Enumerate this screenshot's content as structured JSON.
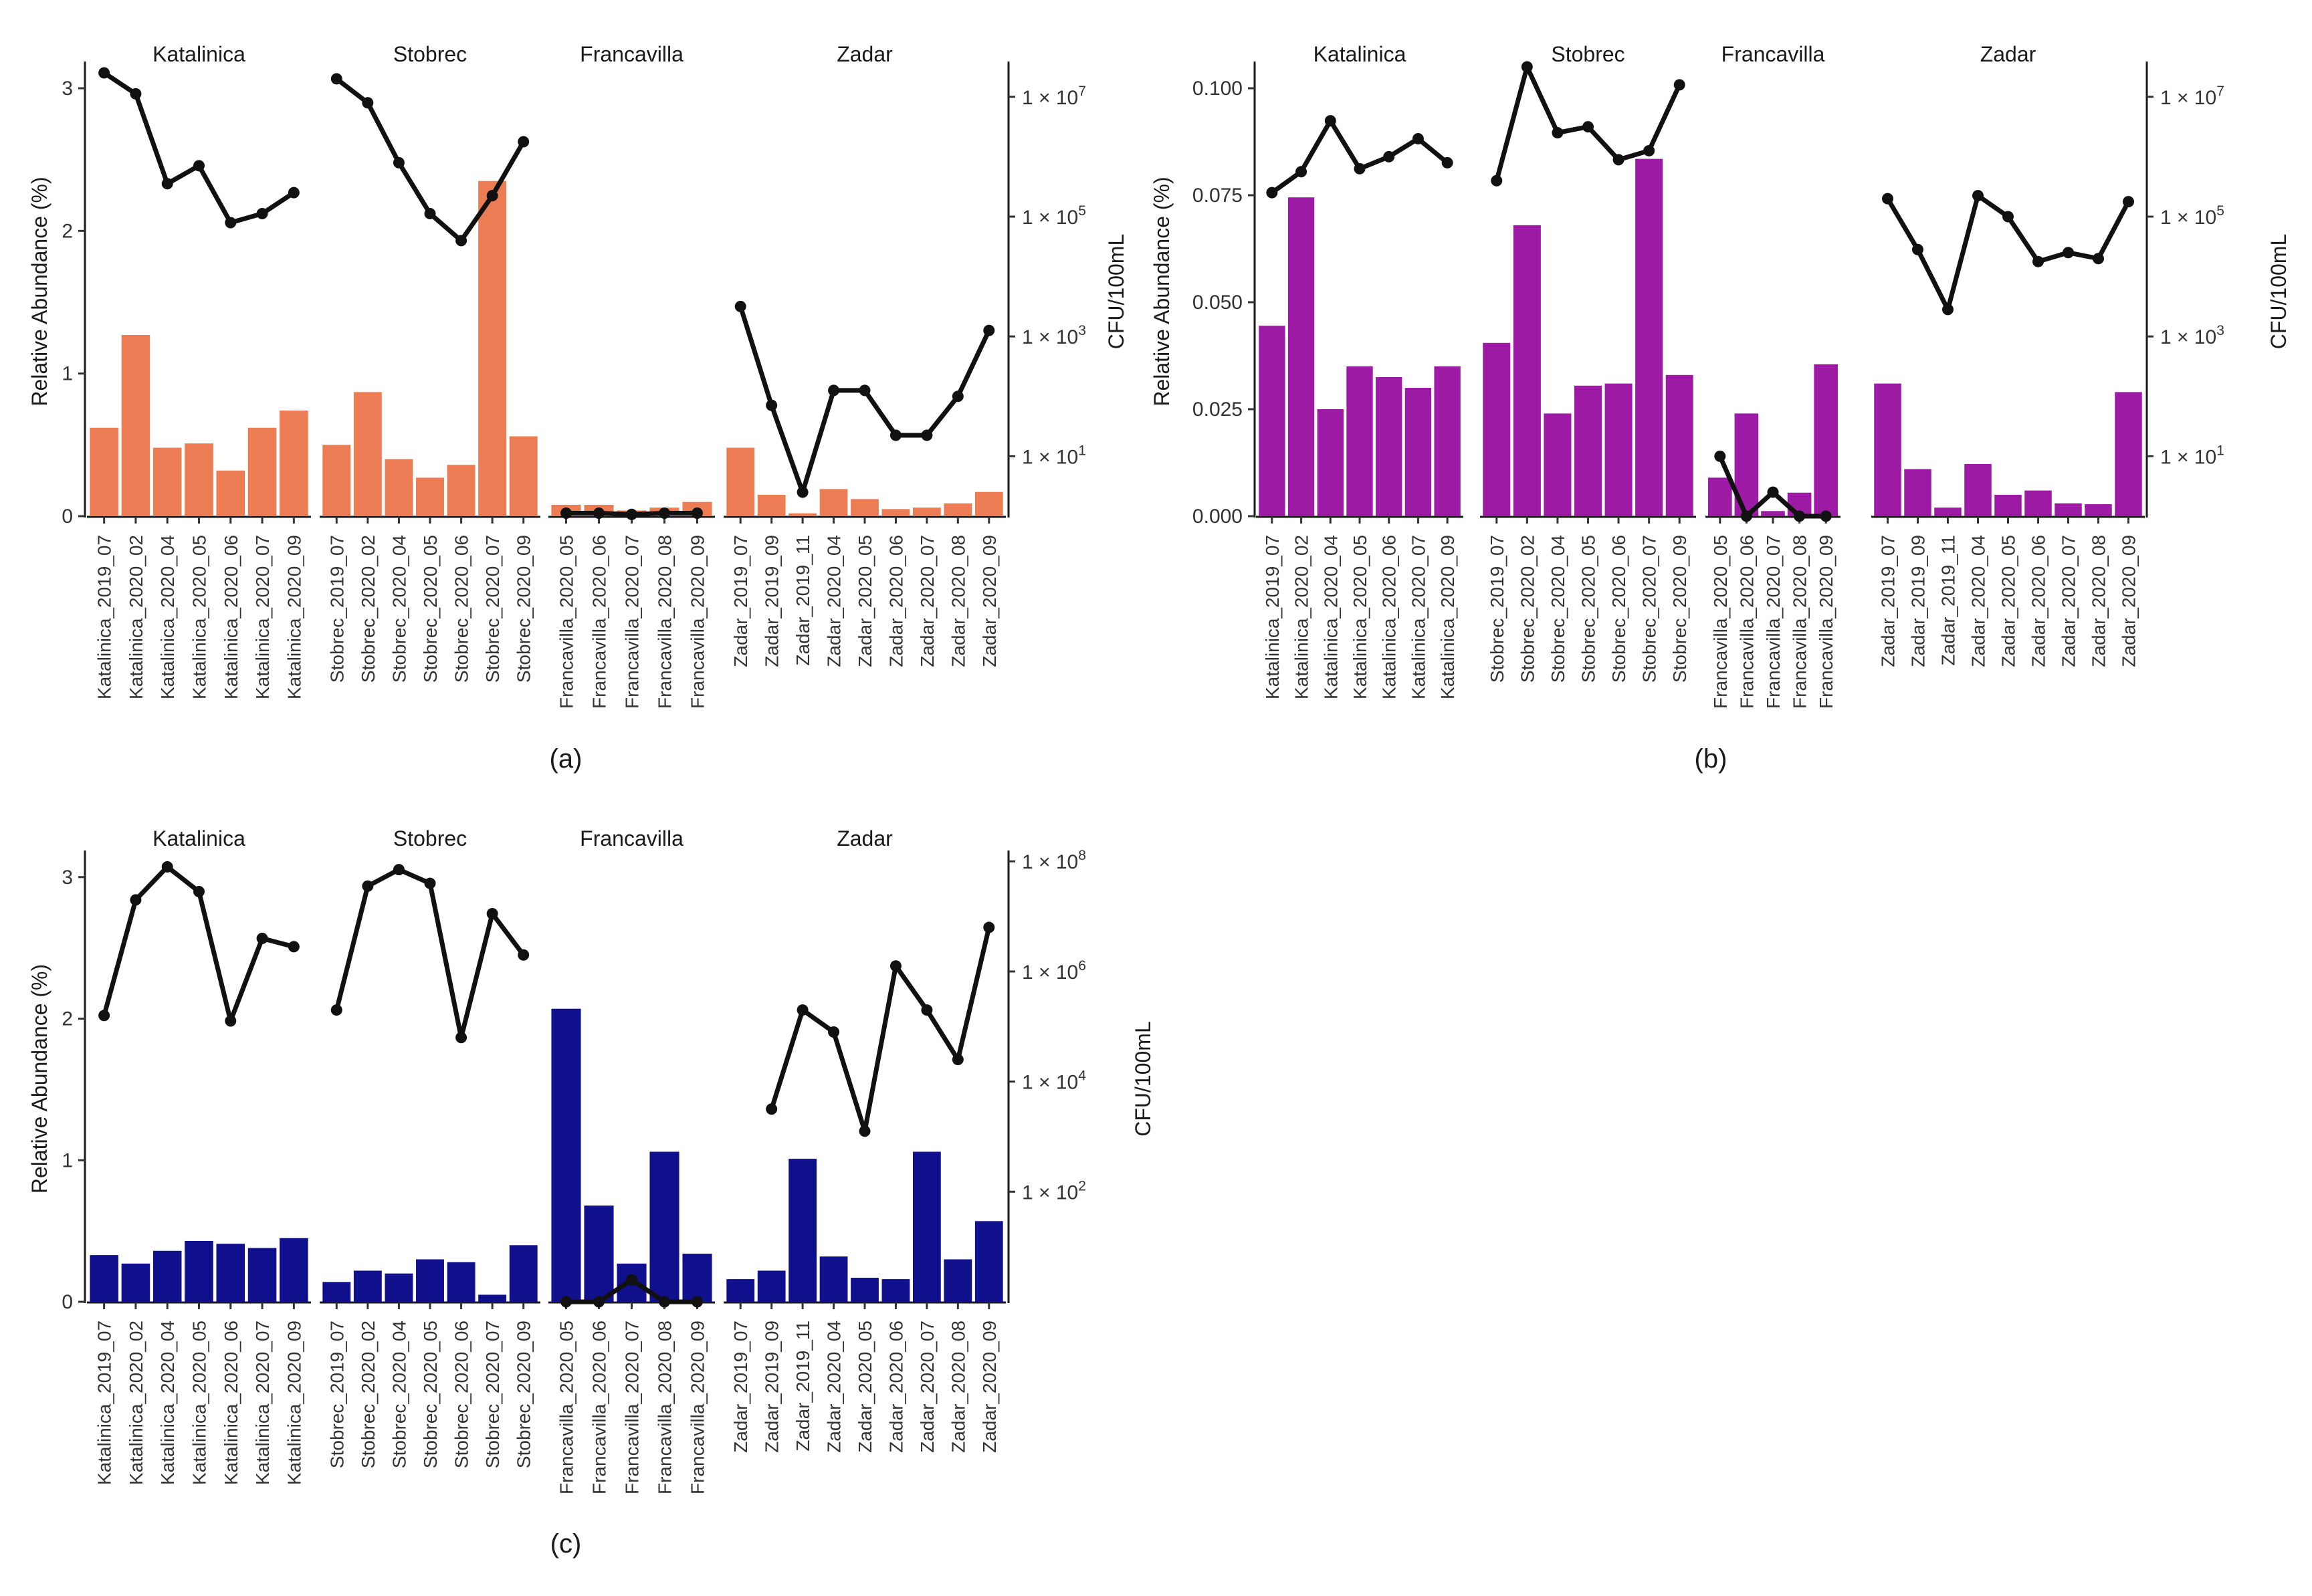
{
  "chart_data": [
    {
      "panel_label": "(a)",
      "type": "bar",
      "secondary_type": "line",
      "ylabel": "Relative Abundance (%)",
      "y2label": "CFU/100mL",
      "ylim": [
        0,
        3.15
      ],
      "yticks": [
        0,
        1,
        2,
        3
      ],
      "y_tick_labels": [
        "0",
        "1",
        "2",
        "3"
      ],
      "y2_log_range": [
        0,
        7.5
      ],
      "y2_ticks": [
        {
          "exp": 1,
          "base": "1 × 10",
          "sup": "1"
        },
        {
          "exp": 3,
          "base": "1 × 10",
          "sup": "3"
        },
        {
          "exp": 5,
          "base": "1 × 10",
          "sup": "5"
        },
        {
          "exp": 7,
          "base": "1 × 10",
          "sup": "7"
        }
      ],
      "bar_color": "#ec7c54",
      "facets": [
        {
          "name": "Katalinica",
          "categories": [
            "Katalinica_2019_07",
            "Katalinica_2020_02",
            "Katalinica_2020_04",
            "Katalinica_2020_05",
            "Katalinica_2020_06",
            "Katalinica_2020_07",
            "Katalinica_2020_09"
          ],
          "values": [
            0.62,
            1.27,
            0.48,
            0.51,
            0.32,
            0.62,
            0.74
          ],
          "cfu_log10": [
            7.4,
            7.05,
            5.55,
            5.85,
            4.9,
            5.05,
            5.4
          ]
        },
        {
          "name": "Stobrec",
          "categories": [
            "Stobrec_2019_07",
            "Stobrec_2020_02",
            "Stobrec_2020_04",
            "Stobrec_2020_05",
            "Stobrec_2020_06",
            "Stobrec_2020_07",
            "Stobrec_2020_09"
          ],
          "values": [
            0.5,
            0.87,
            0.4,
            0.27,
            0.36,
            2.35,
            0.56
          ],
          "cfu_log10": [
            7.3,
            6.9,
            5.9,
            5.05,
            4.6,
            5.35,
            6.25
          ]
        },
        {
          "name": "Francavilla",
          "categories": [
            "Francavilla_2020_05",
            "Francavilla_2020_06",
            "Francavilla_2020_07",
            "Francavilla_2020_08",
            "Francavilla_2020_09"
          ],
          "values": [
            0.08,
            0.08,
            0.04,
            0.06,
            0.1
          ],
          "cfu_log10": [
            0.05,
            0.05,
            0.03,
            0.05,
            0.05
          ]
        },
        {
          "name": "Zadar",
          "categories": [
            "Zadar_2019_07",
            "Zadar_2019_09",
            "Zadar_2019_11",
            "Zadar_2020_04",
            "Zadar_2020_05",
            "Zadar_2020_06",
            "Zadar_2020_07",
            "Zadar_2020_08",
            "Zadar_2020_09"
          ],
          "values": [
            0.48,
            0.15,
            0.02,
            0.19,
            0.12,
            0.05,
            0.06,
            0.09,
            0.17
          ],
          "cfu_log10": [
            3.5,
            1.85,
            0.4,
            2.1,
            2.1,
            1.35,
            1.35,
            2.0,
            3.1
          ]
        }
      ]
    },
    {
      "panel_label": "(b)",
      "type": "bar",
      "secondary_type": "line",
      "ylabel": "Relative Abundance (%)",
      "y2label": "CFU/100mL",
      "ylim": [
        0,
        0.105
      ],
      "yticks": [
        0,
        0.025,
        0.05,
        0.075,
        0.1
      ],
      "y_tick_labels": [
        "0.000",
        "0.025",
        "0.050",
        "0.075",
        "0.100"
      ],
      "y2_log_range": [
        0,
        7.5
      ],
      "y2_ticks": [
        {
          "exp": 1,
          "base": "1 × 10",
          "sup": "1"
        },
        {
          "exp": 3,
          "base": "1 × 10",
          "sup": "3"
        },
        {
          "exp": 5,
          "base": "1 × 10",
          "sup": "5"
        },
        {
          "exp": 7,
          "base": "1 × 10",
          "sup": "7"
        }
      ],
      "bar_color": "#9c1aa4",
      "facets": [
        {
          "name": "Katalinica",
          "categories": [
            "Katalinica_2019_07",
            "Katalinica_2020_02",
            "Katalinica_2020_04",
            "Katalinica_2020_05",
            "Katalinica_2020_06",
            "Katalinica_2020_07",
            "Katalinica_2020_09"
          ],
          "values": [
            0.0445,
            0.0745,
            0.025,
            0.035,
            0.0325,
            0.03,
            0.035
          ],
          "cfu_log10": [
            5.4,
            5.75,
            6.6,
            5.8,
            6.0,
            6.3,
            5.9
          ]
        },
        {
          "name": "Stobrec",
          "categories": [
            "Stobrec_2019_07",
            "Stobrec_2020_02",
            "Stobrec_2020_04",
            "Stobrec_2020_05",
            "Stobrec_2020_06",
            "Stobrec_2020_07",
            "Stobrec_2020_09"
          ],
          "values": [
            0.0405,
            0.068,
            0.024,
            0.0305,
            0.031,
            0.0835,
            0.033
          ],
          "cfu_log10": [
            5.6,
            7.5,
            6.4,
            6.5,
            5.95,
            6.1,
            7.2
          ]
        },
        {
          "name": "Francavilla",
          "categories": [
            "Francavilla_2020_05",
            "Francavilla_2020_06",
            "Francavilla_2020_07",
            "Francavilla_2020_08",
            "Francavilla_2020_09"
          ],
          "values": [
            0.009,
            0.024,
            0.0012,
            0.0055,
            0.0355
          ],
          "cfu_log10": [
            1.0,
            0.0,
            0.4,
            0.0,
            0.0
          ]
        },
        {
          "name": "Zadar",
          "categories": [
            "Zadar_2019_07",
            "Zadar_2019_09",
            "Zadar_2019_11",
            "Zadar_2020_04",
            "Zadar_2020_05",
            "Zadar_2020_06",
            "Zadar_2020_07",
            "Zadar_2020_08",
            "Zadar_2020_09"
          ],
          "values": [
            0.031,
            0.011,
            0.002,
            0.0122,
            0.005,
            0.006,
            0.003,
            0.0028,
            0.029
          ],
          "cfu_log10": [
            5.3,
            4.45,
            3.45,
            5.35,
            5.0,
            4.25,
            4.4,
            4.3,
            5.25
          ]
        }
      ]
    },
    {
      "panel_label": "(c)",
      "type": "bar",
      "secondary_type": "line",
      "ylabel": "Relative Abundance (%)",
      "y2label": "CFU/100mL",
      "ylim": [
        0,
        3.15
      ],
      "yticks": [
        0,
        1,
        2,
        3
      ],
      "y_tick_labels": [
        "0",
        "1",
        "2",
        "3"
      ],
      "y2_log_range": [
        0,
        8.1
      ],
      "y2_ticks": [
        {
          "exp": 2,
          "base": "1 × 10",
          "sup": "2"
        },
        {
          "exp": 4,
          "base": "1 × 10",
          "sup": "4"
        },
        {
          "exp": 6,
          "base": "1 × 10",
          "sup": "6"
        },
        {
          "exp": 8,
          "base": "1 × 10",
          "sup": "8"
        }
      ],
      "bar_color": "#10108c",
      "facets": [
        {
          "name": "Katalinica",
          "categories": [
            "Katalinica_2019_07",
            "Katalinica_2020_02",
            "Katalinica_2020_04",
            "Katalinica_2020_05",
            "Katalinica_2020_06",
            "Katalinica_2020_07",
            "Katalinica_2020_09"
          ],
          "values": [
            0.33,
            0.27,
            0.36,
            0.43,
            0.41,
            0.38,
            0.45
          ],
          "cfu_log10": [
            5.2,
            7.3,
            7.9,
            7.45,
            5.1,
            6.6,
            6.45
          ]
        },
        {
          "name": "Stobrec",
          "categories": [
            "Stobrec_2019_07",
            "Stobrec_2020_02",
            "Stobrec_2020_04",
            "Stobrec_2020_05",
            "Stobrec_2020_06",
            "Stobrec_2020_07",
            "Stobrec_2020_09"
          ],
          "values": [
            0.14,
            0.22,
            0.2,
            0.3,
            0.28,
            0.05,
            0.4
          ],
          "cfu_log10": [
            5.3,
            7.55,
            7.85,
            7.6,
            4.8,
            7.05,
            6.3
          ]
        },
        {
          "name": "Francavilla",
          "categories": [
            "Francavilla_2020_05",
            "Francavilla_2020_06",
            "Francavilla_2020_07",
            "Francavilla_2020_08",
            "Francavilla_2020_09"
          ],
          "values": [
            2.07,
            0.68,
            0.27,
            1.06,
            0.34
          ],
          "cfu_log10": [
            0.0,
            0.0,
            0.4,
            0.0,
            0.0
          ]
        },
        {
          "name": "Zadar",
          "categories": [
            "Zadar_2019_07",
            "Zadar_2019_09",
            "Zadar_2019_11",
            "Zadar_2020_04",
            "Zadar_2020_05",
            "Zadar_2020_06",
            "Zadar_2020_07",
            "Zadar_2020_08",
            "Zadar_2020_09"
          ],
          "values": [
            0.16,
            0.22,
            1.01,
            0.32,
            0.17,
            0.16,
            1.06,
            0.3,
            0.57
          ],
          "cfu_log10": [
            null,
            3.5,
            5.3,
            4.9,
            3.1,
            6.1,
            5.3,
            4.4,
            6.8
          ]
        }
      ]
    }
  ]
}
